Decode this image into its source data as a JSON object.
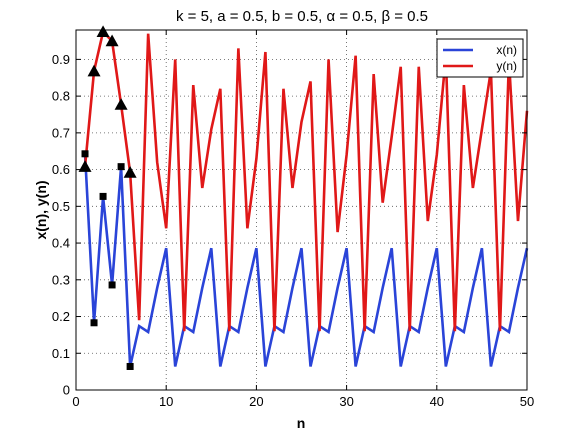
{
  "chart_data": {
    "type": "line",
    "title": "k = 5, a = 0.5, b = 0.5, α = 0.5, β = 0.5",
    "xlabel": "n",
    "ylabel": "x(n),  y(n)",
    "xlim": [
      0,
      50
    ],
    "ylim": [
      0,
      0.98
    ],
    "xticks": [
      0,
      10,
      20,
      30,
      40,
      50
    ],
    "yticks": [
      0,
      0.1,
      0.2,
      0.3,
      0.4,
      0.5,
      0.6,
      0.7,
      0.8,
      0.9
    ],
    "grid": true,
    "legend_position": "top-right",
    "x": [
      1,
      2,
      3,
      4,
      5,
      6,
      7,
      8,
      9,
      10,
      11,
      12,
      13,
      14,
      15,
      16,
      17,
      18,
      19,
      20,
      21,
      22,
      23,
      24,
      25,
      26,
      27,
      28,
      29,
      30,
      31,
      32,
      33,
      34,
      35,
      36,
      37,
      38,
      39,
      40,
      41,
      42,
      43,
      44,
      45,
      46,
      47,
      48,
      49,
      50
    ],
    "series": [
      {
        "name": "x(n)",
        "color": "#2a44d8",
        "values": [
          0.643,
          0.183,
          0.527,
          0.286,
          0.608,
          0.064,
          0.174,
          0.158,
          0.278,
          0.386,
          0.064,
          0.174,
          0.158,
          0.278,
          0.386,
          0.064,
          0.174,
          0.158,
          0.278,
          0.386,
          0.064,
          0.174,
          0.158,
          0.278,
          0.386,
          0.064,
          0.174,
          0.158,
          0.278,
          0.386,
          0.064,
          0.174,
          0.158,
          0.278,
          0.386,
          0.064,
          0.174,
          0.158,
          0.278,
          0.386,
          0.064,
          0.174,
          0.158,
          0.278,
          0.386,
          0.064,
          0.174,
          0.158,
          0.278,
          0.386
        ]
      },
      {
        "name": "y(n)",
        "color": "#e01818",
        "values": [
          0.608,
          0.868,
          0.975,
          0.95,
          0.777,
          0.592,
          0.19,
          0.97,
          0.62,
          0.44,
          0.9,
          0.16,
          0.83,
          0.55,
          0.71,
          0.82,
          0.16,
          0.93,
          0.44,
          0.63,
          0.92,
          0.16,
          0.82,
          0.55,
          0.73,
          0.84,
          0.16,
          0.9,
          0.43,
          0.64,
          0.91,
          0.16,
          0.86,
          0.51,
          0.69,
          0.88,
          0.16,
          0.88,
          0.46,
          0.64,
          0.91,
          0.16,
          0.83,
          0.55,
          0.71,
          0.87,
          0.16,
          0.9,
          0.46,
          0.76
        ]
      }
    ],
    "markers": [
      {
        "series": "x(n)",
        "shape": "square",
        "x": [
          1,
          2,
          3,
          4,
          5,
          6
        ]
      },
      {
        "series": "y(n)",
        "shape": "triangle",
        "x": [
          1,
          2,
          3,
          4,
          5,
          6
        ]
      }
    ]
  }
}
